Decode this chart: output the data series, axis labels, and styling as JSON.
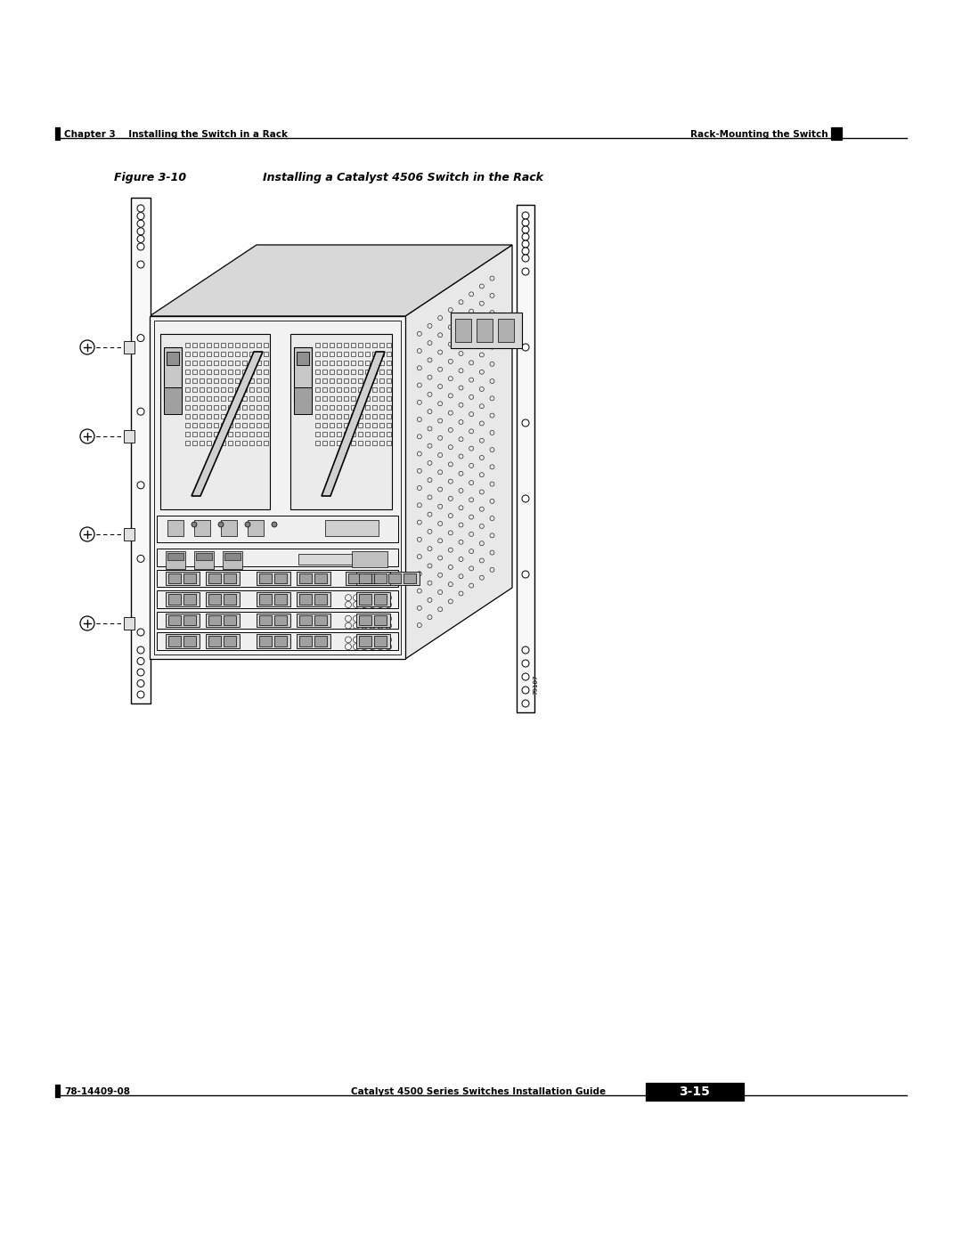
{
  "page_width": 10.8,
  "page_height": 13.97,
  "bg_color": "#ffffff",
  "header_left_text": "Chapter 3    Installing the Switch in a Rack",
  "header_right_text": "Rack-Mounting the Switch",
  "footer_left_text": "78-14409-08",
  "footer_center_text": "Catalyst 4500 Series Switches Installation Guide",
  "footer_right_box_text": "3-15",
  "figure_label": "Figure 3-10",
  "figure_caption": "Installing a Catalyst 4506 Switch in the Rack",
  "figure_num_label": "79187"
}
